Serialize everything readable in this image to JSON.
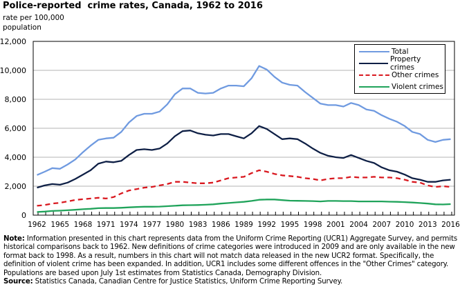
{
  "title": "Police-reported  crime rates, Canada, 1962 to 2016",
  "ylabel_line1": "rate per 100,000",
  "ylabel_line2": "population",
  "notes": {
    "note_label": "Note:",
    "note_text": " Information presented in this chart represents data from the Uniform Crime Reporting (UCR1) Aggregate Survey, and permits historical comparisons back to 1962. New definitions of crime categories were introduced in 2009 and are only available in the new format back to 1998. As a result, numbers in this chart will not match data released in the new UCR2 format. Specifically, the definition of violent crime has been expanded. In addition, UCR1 includes some different offences in the \"Other Crimes\" category. Populations are based upon July 1st estimates from Statistics Canada, Demography Division.",
    "source_label": "Source:",
    "source_text": " Statistics Canada, Canadian Centre for Justice Statistics, Uniform Crime Reporting Survey."
  },
  "chart_data": {
    "type": "line",
    "title": "Police-reported  crime rates, Canada, 1962 to 2016",
    "xlabel": "",
    "ylabel": "rate per 100,000 population",
    "ylim": [
      0,
      12000
    ],
    "xlim": [
      1962,
      2016
    ],
    "grid": true,
    "legend_position": "top-right",
    "y_ticks": [
      0,
      2000,
      4000,
      6000,
      8000,
      10000,
      12000
    ],
    "y_tick_labels": [
      "0",
      "2,000",
      "4,000",
      "6,000",
      "8,000",
      "10,000",
      "12,000"
    ],
    "x_tick_labels": [
      "1962",
      "1965",
      "1968",
      "1971",
      "1974",
      "1977",
      "1980",
      "1983",
      "1986",
      "1989",
      "1992",
      "1995",
      "1998",
      "2001",
      "2004",
      "2007",
      "2010",
      "2013",
      "2016"
    ],
    "x_start": 1962,
    "series": [
      {
        "name": "Total",
        "color": "#6f9ae0",
        "dash": false,
        "values": [
          2770,
          3000,
          3250,
          3200,
          3500,
          3850,
          4350,
          4800,
          5200,
          5300,
          5350,
          5750,
          6400,
          6850,
          7000,
          7000,
          7150,
          7650,
          8350,
          8750,
          8750,
          8450,
          8400,
          8450,
          8750,
          8950,
          8950,
          8900,
          9450,
          10300,
          10050,
          9550,
          9150,
          9000,
          8950,
          8500,
          8100,
          7700,
          7600,
          7600,
          7500,
          7750,
          7600,
          7300,
          7200,
          6900,
          6650,
          6450,
          6150,
          5750,
          5600,
          5200,
          5050,
          5200,
          5250
        ]
      },
      {
        "name": "Property crimes",
        "color": "#0e1f45",
        "dash": false,
        "values": [
          1900,
          2050,
          2150,
          2100,
          2250,
          2500,
          2800,
          3100,
          3550,
          3700,
          3650,
          3750,
          4150,
          4500,
          4550,
          4500,
          4600,
          4950,
          5450,
          5800,
          5850,
          5650,
          5550,
          5500,
          5600,
          5600,
          5450,
          5300,
          5650,
          6150,
          5950,
          5600,
          5250,
          5300,
          5250,
          4950,
          4600,
          4300,
          4100,
          4000,
          3950,
          4150,
          3950,
          3750,
          3600,
          3300,
          3100,
          3000,
          2800,
          2550,
          2450,
          2300,
          2300,
          2400,
          2450
        ]
      },
      {
        "name": "Other crimes",
        "color": "#d9181f",
        "dash": true,
        "values": [
          650,
          700,
          800,
          850,
          950,
          1050,
          1100,
          1150,
          1200,
          1150,
          1250,
          1500,
          1700,
          1800,
          1900,
          1950,
          2050,
          2150,
          2300,
          2300,
          2250,
          2200,
          2200,
          2250,
          2400,
          2550,
          2600,
          2650,
          2900,
          3100,
          3000,
          2850,
          2750,
          2700,
          2650,
          2550,
          2500,
          2400,
          2500,
          2550,
          2550,
          2650,
          2600,
          2600,
          2650,
          2600,
          2600,
          2550,
          2450,
          2300,
          2250,
          2050,
          1950,
          2000,
          1950
        ]
      },
      {
        "name": "Violent crimes",
        "color": "#1fa35a",
        "dash": false,
        "values": [
          220,
          250,
          290,
          310,
          340,
          370,
          410,
          440,
          480,
          490,
          490,
          510,
          540,
          560,
          580,
          580,
          590,
          620,
          650,
          680,
          690,
          700,
          720,
          750,
          800,
          840,
          880,
          920,
          980,
          1060,
          1080,
          1080,
          1040,
          1000,
          990,
          980,
          970,
          950,
          980,
          980,
          970,
          970,
          950,
          950,
          950,
          950,
          930,
          920,
          900,
          870,
          840,
          800,
          750,
          740,
          760
        ]
      }
    ]
  }
}
